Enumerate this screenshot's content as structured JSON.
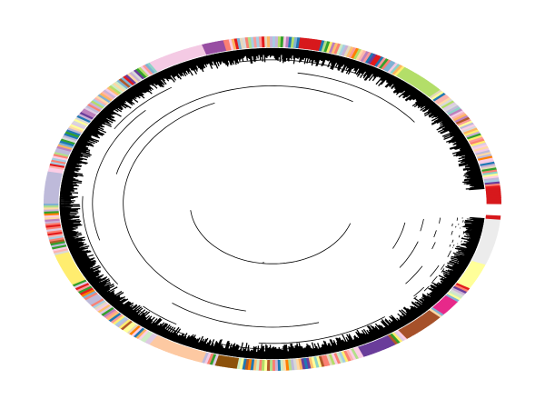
{
  "figure": {
    "type": "circular-dendrogram",
    "background": "#ffffff",
    "branch_color": "#000000",
    "ring_palette": [
      "#e31a1c",
      "#b2df8a",
      "#fb9a99",
      "#a6cee3",
      "#fdbf6f",
      "#cab2d6",
      "#33a02c",
      "#ff7f00",
      "#6a3d9a",
      "#ffff99",
      "#b15928",
      "#1f78b4",
      "#f4cae4",
      "#fbb4ae",
      "#ccebc5",
      "#fed9a6",
      "#e5d8bd",
      "#decbe4",
      "#b3de69",
      "#fccde5",
      "#d9d9d9",
      "#80b1d3",
      "#ffed6f",
      "#8dd3c7",
      "#bebada",
      "#fb8072",
      "#fdb462",
      "#bc80bd"
    ],
    "ring_blocks": [
      {
        "label": "red-block-right",
        "color": "#d7191c"
      },
      {
        "label": "light-grey-block-right",
        "color": "#ececec"
      },
      {
        "label": "yellow-block-right",
        "color": "#ffff99"
      },
      {
        "label": "pink-block-lower-right",
        "color": "#e7298a"
      },
      {
        "label": "brown-block-lower-right",
        "color": "#a6512a"
      },
      {
        "label": "purple-block-lower-right",
        "color": "#6a3d9a"
      },
      {
        "label": "peach-block-bottom",
        "color": "#fdc9a2"
      },
      {
        "label": "brown-block-bottom",
        "color": "#8c510a"
      },
      {
        "label": "pink-block-top-left",
        "color": "#f4cae4"
      },
      {
        "label": "purple-block-top",
        "color": "#984ea3"
      },
      {
        "label": "red-block-top",
        "color": "#d7191c"
      },
      {
        "label": "light-green-block-top-right",
        "color": "#b3de69"
      },
      {
        "label": "lavender-block-left",
        "color": "#bebada"
      },
      {
        "label": "yellow-block-left",
        "color": "#ffed6f"
      }
    ],
    "leaf_count": 1100,
    "gap_side": "right"
  }
}
